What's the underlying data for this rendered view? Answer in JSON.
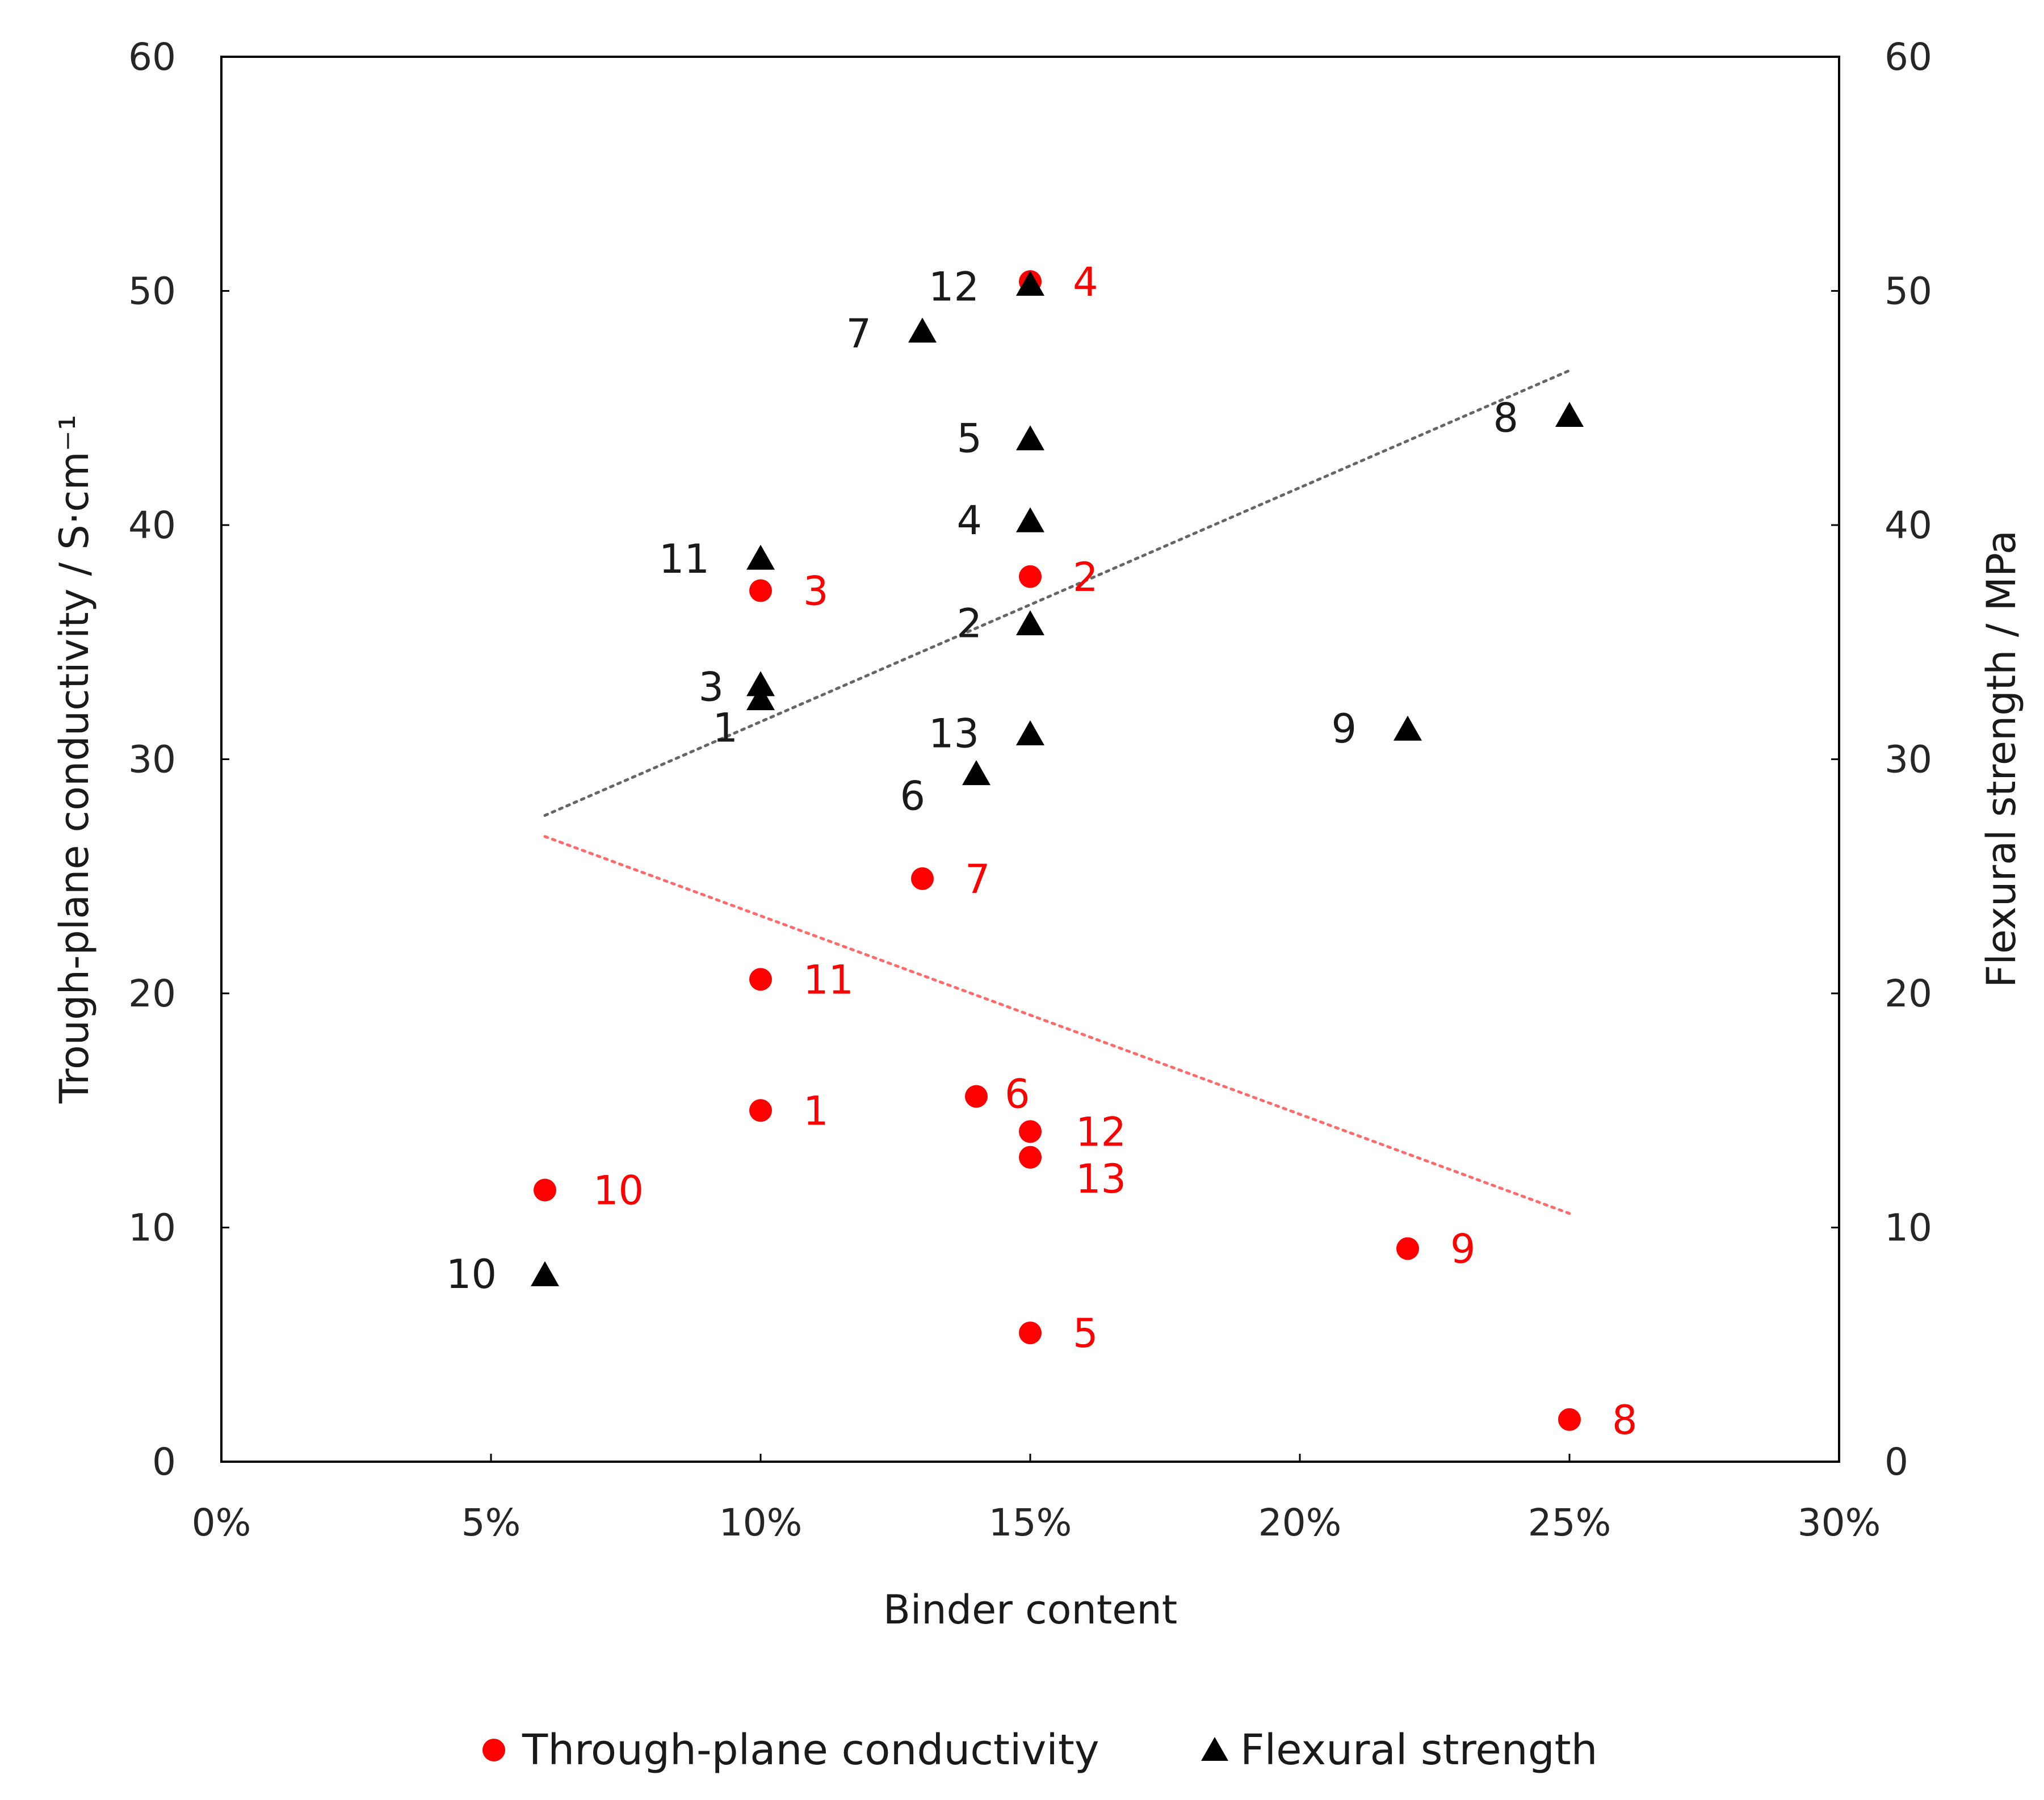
{
  "chart_data": {
    "type": "scatter",
    "title": "",
    "xlabel": "Binder content",
    "ylabel": "Trough-plane conductivity / S·cm⁻¹",
    "y2label": "Flexural strength / MPa",
    "xlim": [
      0,
      30
    ],
    "ylim": [
      0,
      60
    ],
    "y2lim": [
      0,
      60
    ],
    "x_ticks": [
      0,
      5,
      10,
      15,
      20,
      25,
      30
    ],
    "x_tick_labels": [
      "0%",
      "5%",
      "10%",
      "15%",
      "20%",
      "25%",
      "30%"
    ],
    "y_ticks": [
      0,
      10,
      20,
      30,
      40,
      50,
      60
    ],
    "y_tick_labels": [
      "0",
      "10",
      "20",
      "30",
      "40",
      "50",
      "60"
    ],
    "y2_ticks": [
      0,
      10,
      20,
      30,
      40,
      50,
      60
    ],
    "y2_tick_labels": [
      "0",
      "10",
      "20",
      "30",
      "40",
      "50",
      "60"
    ],
    "grid": false,
    "legend_position": "bottom-center",
    "series": [
      {
        "name": "Through-plane conductivity",
        "axis": "left",
        "marker": "circle",
        "color": "#ff0000",
        "points": [
          {
            "label": "1",
            "x": 10,
            "y": 15.0
          },
          {
            "label": "2",
            "x": 15,
            "y": 37.8
          },
          {
            "label": "3",
            "x": 10,
            "y": 37.2
          },
          {
            "label": "4",
            "x": 15,
            "y": 50.4
          },
          {
            "label": "5",
            "x": 15,
            "y": 5.5
          },
          {
            "label": "6",
            "x": 14,
            "y": 15.6
          },
          {
            "label": "7",
            "x": 13,
            "y": 24.9
          },
          {
            "label": "8",
            "x": 25,
            "y": 1.8
          },
          {
            "label": "9",
            "x": 22,
            "y": 9.1
          },
          {
            "label": "10",
            "x": 6,
            "y": 11.6
          },
          {
            "label": "11",
            "x": 10,
            "y": 20.6
          },
          {
            "label": "12",
            "x": 15,
            "y": 14.1
          },
          {
            "label": "13",
            "x": 15,
            "y": 13.0
          }
        ],
        "trendline": {
          "style": "dotted",
          "x": [
            6,
            25
          ],
          "y": [
            26.7,
            10.6
          ]
        }
      },
      {
        "name": "Flexural strength",
        "axis": "right",
        "marker": "triangle",
        "color": "#000000",
        "points": [
          {
            "label": "1",
            "x": 10,
            "y": 32.5
          },
          {
            "label": "2",
            "x": 15,
            "y": 35.7
          },
          {
            "label": "3",
            "x": 10,
            "y": 33.1
          },
          {
            "label": "4",
            "x": 15,
            "y": 40.1
          },
          {
            "label": "5",
            "x": 15,
            "y": 43.6
          },
          {
            "label": "6",
            "x": 14,
            "y": 29.3
          },
          {
            "label": "7",
            "x": 13,
            "y": 48.2
          },
          {
            "label": "8",
            "x": 25,
            "y": 44.6
          },
          {
            "label": "9",
            "x": 22,
            "y": 31.2
          },
          {
            "label": "10",
            "x": 6,
            "y": 7.9
          },
          {
            "label": "11",
            "x": 10,
            "y": 38.5
          },
          {
            "label": "12",
            "x": 15,
            "y": 50.2
          },
          {
            "label": "13",
            "x": 15,
            "y": 31.0
          }
        ],
        "trendline": {
          "style": "dotted",
          "x": [
            6,
            25
          ],
          "y": [
            27.6,
            46.6
          ]
        }
      }
    ]
  }
}
